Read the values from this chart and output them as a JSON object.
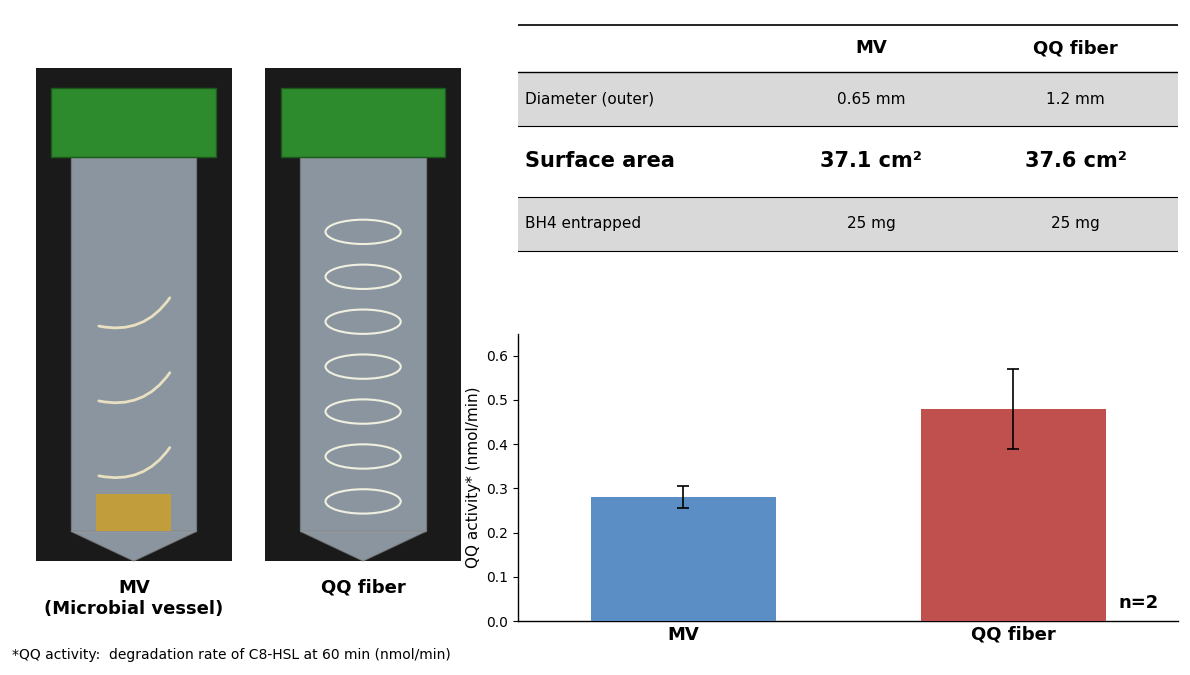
{
  "bar_categories": [
    "MV",
    "QQ fiber"
  ],
  "bar_values": [
    0.28,
    0.48
  ],
  "bar_errors": [
    0.025,
    0.09
  ],
  "bar_colors": [
    "#5b8ec4",
    "#c0504d"
  ],
  "ylabel": "QQ activity* (nmol/min)",
  "ylim": [
    0,
    0.65
  ],
  "yticks": [
    0,
    0.1,
    0.2,
    0.3,
    0.4,
    0.5,
    0.6
  ],
  "n_label": "n=2",
  "footnote": "*QQ activity:  degradation rate of C8-HSL at 60 min (nmol/min)",
  "table_headers": [
    "",
    "MV",
    "QQ fiber"
  ],
  "table_rows": [
    [
      "Diameter (outer)",
      "0.65 mm",
      "1.2 mm"
    ],
    [
      "Surface area",
      "37.1 cm²",
      "37.6 cm²"
    ],
    [
      "BH4 entrapped",
      "25 mg",
      "25 mg"
    ]
  ],
  "photo_label1": "MV\n(Microbial vessel)",
  "photo_label2": "QQ fiber",
  "background_color": "#ffffff",
  "table_row_colors": [
    "#d9d9d9",
    "#ffffff",
    "#d9d9d9"
  ]
}
